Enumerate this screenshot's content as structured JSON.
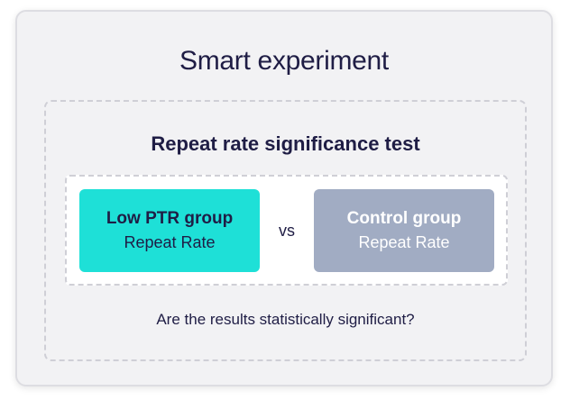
{
  "title": "Smart experiment",
  "test": {
    "heading": "Repeat rate significance test",
    "groups": [
      {
        "name": "Low PTR group",
        "metric": "Repeat Rate",
        "color": "#1ee0d7"
      },
      {
        "name": "Control group",
        "metric": "Repeat Rate",
        "color": "#a1acc3"
      }
    ],
    "separator": "vs",
    "question": "Are the results statistically significant?"
  }
}
